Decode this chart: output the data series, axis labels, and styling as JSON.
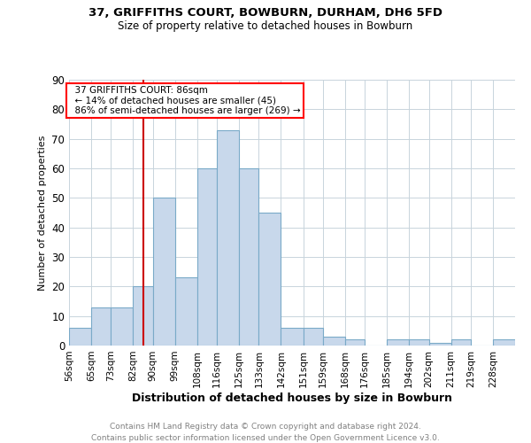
{
  "title1": "37, GRIFFITHS COURT, BOWBURN, DURHAM, DH6 5FD",
  "title2": "Size of property relative to detached houses in Bowburn",
  "xlabel": "Distribution of detached houses by size in Bowburn",
  "ylabel": "Number of detached properties",
  "footnote1": "Contains HM Land Registry data © Crown copyright and database right 2024.",
  "footnote2": "Contains public sector information licensed under the Open Government Licence v3.0.",
  "annotation_title": "37 GRIFFITHS COURT: 86sqm",
  "annotation_line1": "← 14% of detached houses are smaller (45)",
  "annotation_line2": "86% of semi-detached houses are larger (269) →",
  "red_line_x": 86,
  "bar_color": "#c8d8eb",
  "bar_edge_color": "#7aaac8",
  "red_line_color": "#cc0000",
  "categories": [
    "56sqm",
    "65sqm",
    "73sqm",
    "82sqm",
    "90sqm",
    "99sqm",
    "108sqm",
    "116sqm",
    "125sqm",
    "133sqm",
    "142sqm",
    "151sqm",
    "159sqm",
    "168sqm",
    "176sqm",
    "185sqm",
    "194sqm",
    "202sqm",
    "211sqm",
    "219sqm",
    "228sqm"
  ],
  "bin_edges": [
    56,
    65,
    73,
    82,
    90,
    99,
    108,
    116,
    125,
    133,
    142,
    151,
    159,
    168,
    176,
    185,
    194,
    202,
    211,
    219,
    228
  ],
  "values": [
    6,
    13,
    13,
    20,
    50,
    23,
    60,
    73,
    60,
    45,
    6,
    6,
    3,
    2,
    0,
    2,
    2,
    1,
    2,
    0,
    2
  ],
  "ylim": [
    0,
    90
  ],
  "yticks": [
    0,
    10,
    20,
    30,
    40,
    50,
    60,
    70,
    80,
    90
  ],
  "background_color": "#ffffff",
  "grid_color": "#c8d4dc"
}
